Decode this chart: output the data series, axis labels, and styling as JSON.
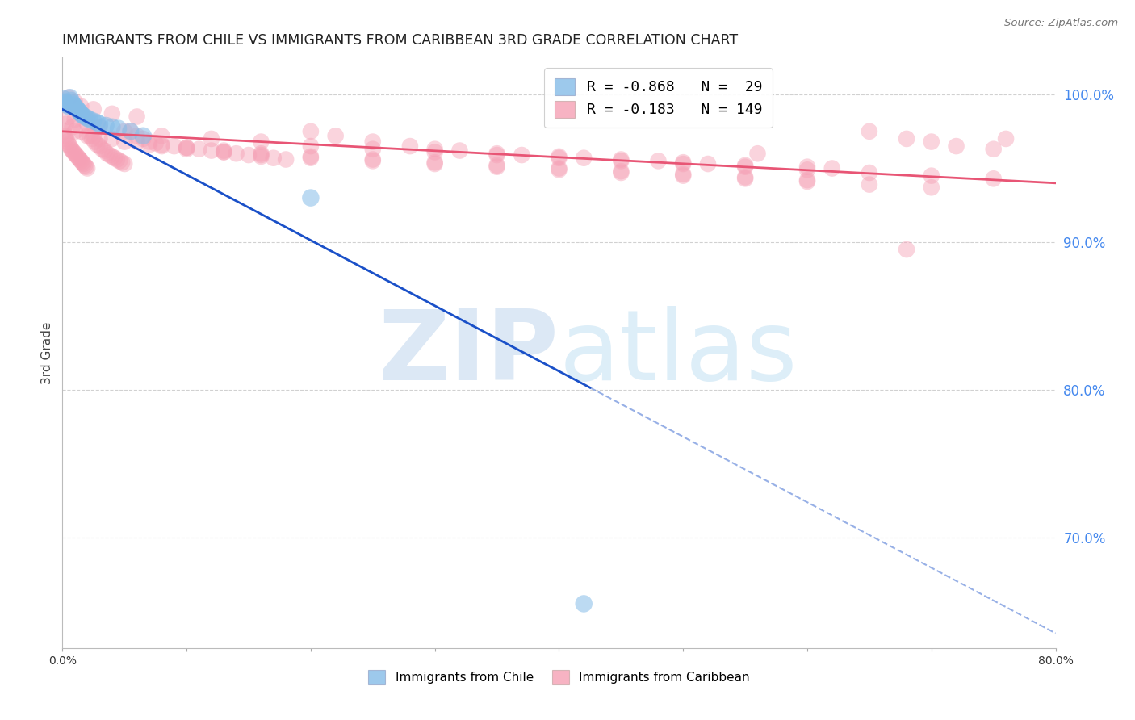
{
  "title": "IMMIGRANTS FROM CHILE VS IMMIGRANTS FROM CARIBBEAN 3RD GRADE CORRELATION CHART",
  "source": "Source: ZipAtlas.com",
  "ylabel": "3rd Grade",
  "right_ytick_labels": [
    "100.0%",
    "90.0%",
    "80.0%",
    "70.0%"
  ],
  "right_ytick_vals": [
    1.0,
    0.9,
    0.8,
    0.7
  ],
  "xlim": [
    0.0,
    0.8
  ],
  "ylim": [
    0.625,
    1.025
  ],
  "chile_R": -0.868,
  "chile_N": 29,
  "caribbean_R": -0.183,
  "caribbean_N": 149,
  "chile_color": "#85bce8",
  "caribbean_color": "#f5a0b5",
  "chile_line_color": "#1a50c8",
  "caribbean_line_color": "#e85575",
  "background_color": "#ffffff",
  "grid_color": "#cccccc",
  "title_fontsize": 12.5,
  "source_fontsize": 9.5,
  "right_axis_color": "#4488ee",
  "chile_line_x0": 0.0,
  "chile_line_y0": 0.99,
  "chile_line_x1": 0.8,
  "chile_line_y1": 0.635,
  "chile_line_solid_x1": 0.425,
  "carib_line_x0": 0.0,
  "carib_line_y0": 0.975,
  "carib_line_x1": 0.8,
  "carib_line_y1": 0.94,
  "chile_scatter_x": [
    0.001,
    0.002,
    0.003,
    0.004,
    0.005,
    0.006,
    0.007,
    0.008,
    0.009,
    0.01,
    0.011,
    0.012,
    0.013,
    0.014,
    0.015,
    0.016,
    0.018,
    0.02,
    0.022,
    0.025,
    0.028,
    0.03,
    0.035,
    0.04,
    0.045,
    0.055,
    0.065,
    0.2,
    0.42
  ],
  "chile_scatter_y": [
    0.997,
    0.995,
    0.994,
    0.993,
    0.992,
    0.998,
    0.996,
    0.994,
    0.993,
    0.992,
    0.991,
    0.99,
    0.989,
    0.988,
    0.987,
    0.986,
    0.985,
    0.984,
    0.983,
    0.982,
    0.981,
    0.98,
    0.979,
    0.978,
    0.977,
    0.975,
    0.972,
    0.93,
    0.655
  ],
  "carib_scatter_x": [
    0.001,
    0.002,
    0.003,
    0.004,
    0.005,
    0.006,
    0.007,
    0.008,
    0.009,
    0.01,
    0.011,
    0.012,
    0.013,
    0.014,
    0.015,
    0.016,
    0.017,
    0.018,
    0.019,
    0.02,
    0.022,
    0.024,
    0.026,
    0.028,
    0.03,
    0.032,
    0.034,
    0.036,
    0.038,
    0.04,
    0.042,
    0.044,
    0.046,
    0.048,
    0.05,
    0.055,
    0.06,
    0.065,
    0.07,
    0.075,
    0.08,
    0.09,
    0.1,
    0.11,
    0.12,
    0.13,
    0.14,
    0.15,
    0.16,
    0.17,
    0.18,
    0.2,
    0.22,
    0.25,
    0.28,
    0.3,
    0.32,
    0.35,
    0.37,
    0.4,
    0.42,
    0.45,
    0.48,
    0.5,
    0.52,
    0.55,
    0.6,
    0.62,
    0.65,
    0.68,
    0.7,
    0.72,
    0.75,
    0.01,
    0.02,
    0.03,
    0.05,
    0.07,
    0.1,
    0.13,
    0.16,
    0.2,
    0.25,
    0.3,
    0.35,
    0.4,
    0.45,
    0.5,
    0.55,
    0.6,
    0.003,
    0.008,
    0.015,
    0.025,
    0.04,
    0.06,
    0.08,
    0.1,
    0.13,
    0.16,
    0.2,
    0.25,
    0.3,
    0.35,
    0.4,
    0.45,
    0.5,
    0.55,
    0.6,
    0.65,
    0.7,
    0.005,
    0.01,
    0.02,
    0.03,
    0.05,
    0.08,
    0.12,
    0.16,
    0.2,
    0.25,
    0.3,
    0.35,
    0.4,
    0.45,
    0.5,
    0.55,
    0.6,
    0.65,
    0.7,
    0.75,
    0.005,
    0.01,
    0.015,
    0.025,
    0.04,
    0.06,
    0.56,
    0.68,
    0.76
  ],
  "carib_scatter_y": [
    0.975,
    0.972,
    0.97,
    0.968,
    0.966,
    0.965,
    0.963,
    0.962,
    0.961,
    0.96,
    0.959,
    0.958,
    0.957,
    0.956,
    0.955,
    0.954,
    0.953,
    0.952,
    0.951,
    0.95,
    0.972,
    0.97,
    0.968,
    0.966,
    0.965,
    0.963,
    0.962,
    0.96,
    0.959,
    0.958,
    0.957,
    0.956,
    0.955,
    0.954,
    0.953,
    0.975,
    0.972,
    0.97,
    0.968,
    0.967,
    0.966,
    0.965,
    0.964,
    0.963,
    0.962,
    0.961,
    0.96,
    0.959,
    0.958,
    0.957,
    0.956,
    0.975,
    0.972,
    0.968,
    0.965,
    0.963,
    0.962,
    0.96,
    0.959,
    0.958,
    0.957,
    0.956,
    0.955,
    0.954,
    0.953,
    0.952,
    0.951,
    0.95,
    0.975,
    0.97,
    0.968,
    0.965,
    0.963,
    0.975,
    0.972,
    0.97,
    0.968,
    0.966,
    0.964,
    0.962,
    0.96,
    0.958,
    0.956,
    0.954,
    0.952,
    0.95,
    0.948,
    0.946,
    0.944,
    0.942,
    0.98,
    0.978,
    0.975,
    0.972,
    0.97,
    0.968,
    0.965,
    0.963,
    0.961,
    0.959,
    0.957,
    0.955,
    0.953,
    0.951,
    0.949,
    0.947,
    0.945,
    0.943,
    0.941,
    0.939,
    0.937,
    0.985,
    0.983,
    0.98,
    0.978,
    0.975,
    0.972,
    0.97,
    0.968,
    0.965,
    0.963,
    0.961,
    0.959,
    0.957,
    0.955,
    0.953,
    0.951,
    0.949,
    0.947,
    0.945,
    0.943,
    0.998,
    0.995,
    0.992,
    0.99,
    0.987,
    0.985,
    0.96,
    0.895,
    0.97
  ]
}
